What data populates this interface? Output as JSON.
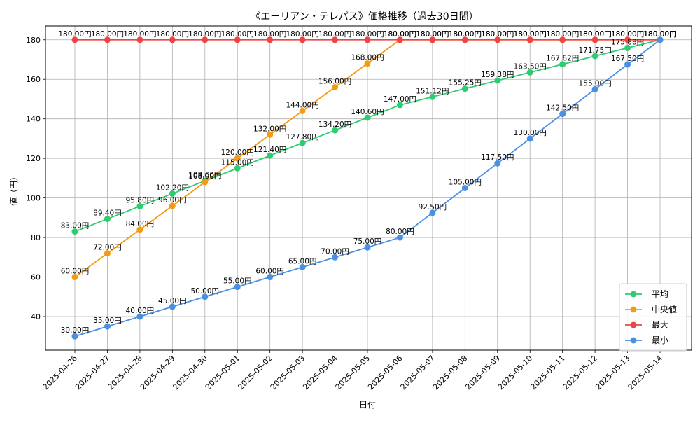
{
  "chart_data": {
    "type": "line",
    "title": "《エーリアン・テレパス》価格推移（過去30日間）",
    "xlabel": "日付",
    "ylabel": "値（円）",
    "ylim": [
      23,
      187
    ],
    "yticks": [
      40,
      60,
      80,
      100,
      120,
      140,
      160,
      180
    ],
    "grid": true,
    "legend_position": "lower-right",
    "label_suffix": "円",
    "x": [
      "2025-04-26",
      "2025-04-27",
      "2025-04-28",
      "2025-04-29",
      "2025-04-30",
      "2025-05-01",
      "2025-05-02",
      "2025-05-03",
      "2025-05-04",
      "2025-05-05",
      "2025-05-06",
      "2025-05-07",
      "2025-05-08",
      "2025-05-09",
      "2025-05-10",
      "2025-05-11",
      "2025-05-12",
      "2025-05-13",
      "2025-05-14"
    ],
    "series": [
      {
        "name": "平均",
        "color": "#2ecc71",
        "values": [
          83.0,
          89.4,
          95.8,
          102.2,
          108.6,
          115.0,
          121.4,
          127.8,
          134.2,
          140.6,
          147.0,
          151.12,
          155.25,
          159.38,
          163.5,
          167.62,
          171.75,
          175.88,
          180.0
        ]
      },
      {
        "name": "中央値",
        "color": "#f39c12",
        "values": [
          60.0,
          72.0,
          84.0,
          96.0,
          108.0,
          120.0,
          132.0,
          144.0,
          156.0,
          168.0,
          180.0,
          180.0,
          180.0,
          180.0,
          180.0,
          180.0,
          180.0,
          180.0,
          180.0
        ]
      },
      {
        "name": "最大",
        "color": "#ef4444",
        "values": [
          180.0,
          180.0,
          180.0,
          180.0,
          180.0,
          180.0,
          180.0,
          180.0,
          180.0,
          180.0,
          180.0,
          180.0,
          180.0,
          180.0,
          180.0,
          180.0,
          180.0,
          180.0,
          180.0
        ]
      },
      {
        "name": "最小",
        "color": "#4a90e2",
        "values": [
          30.0,
          35.0,
          40.0,
          45.0,
          50.0,
          55.0,
          60.0,
          65.0,
          70.0,
          75.0,
          80.0,
          92.5,
          105.0,
          117.5,
          130.0,
          142.5,
          155.0,
          167.5,
          180.0
        ]
      }
    ]
  }
}
